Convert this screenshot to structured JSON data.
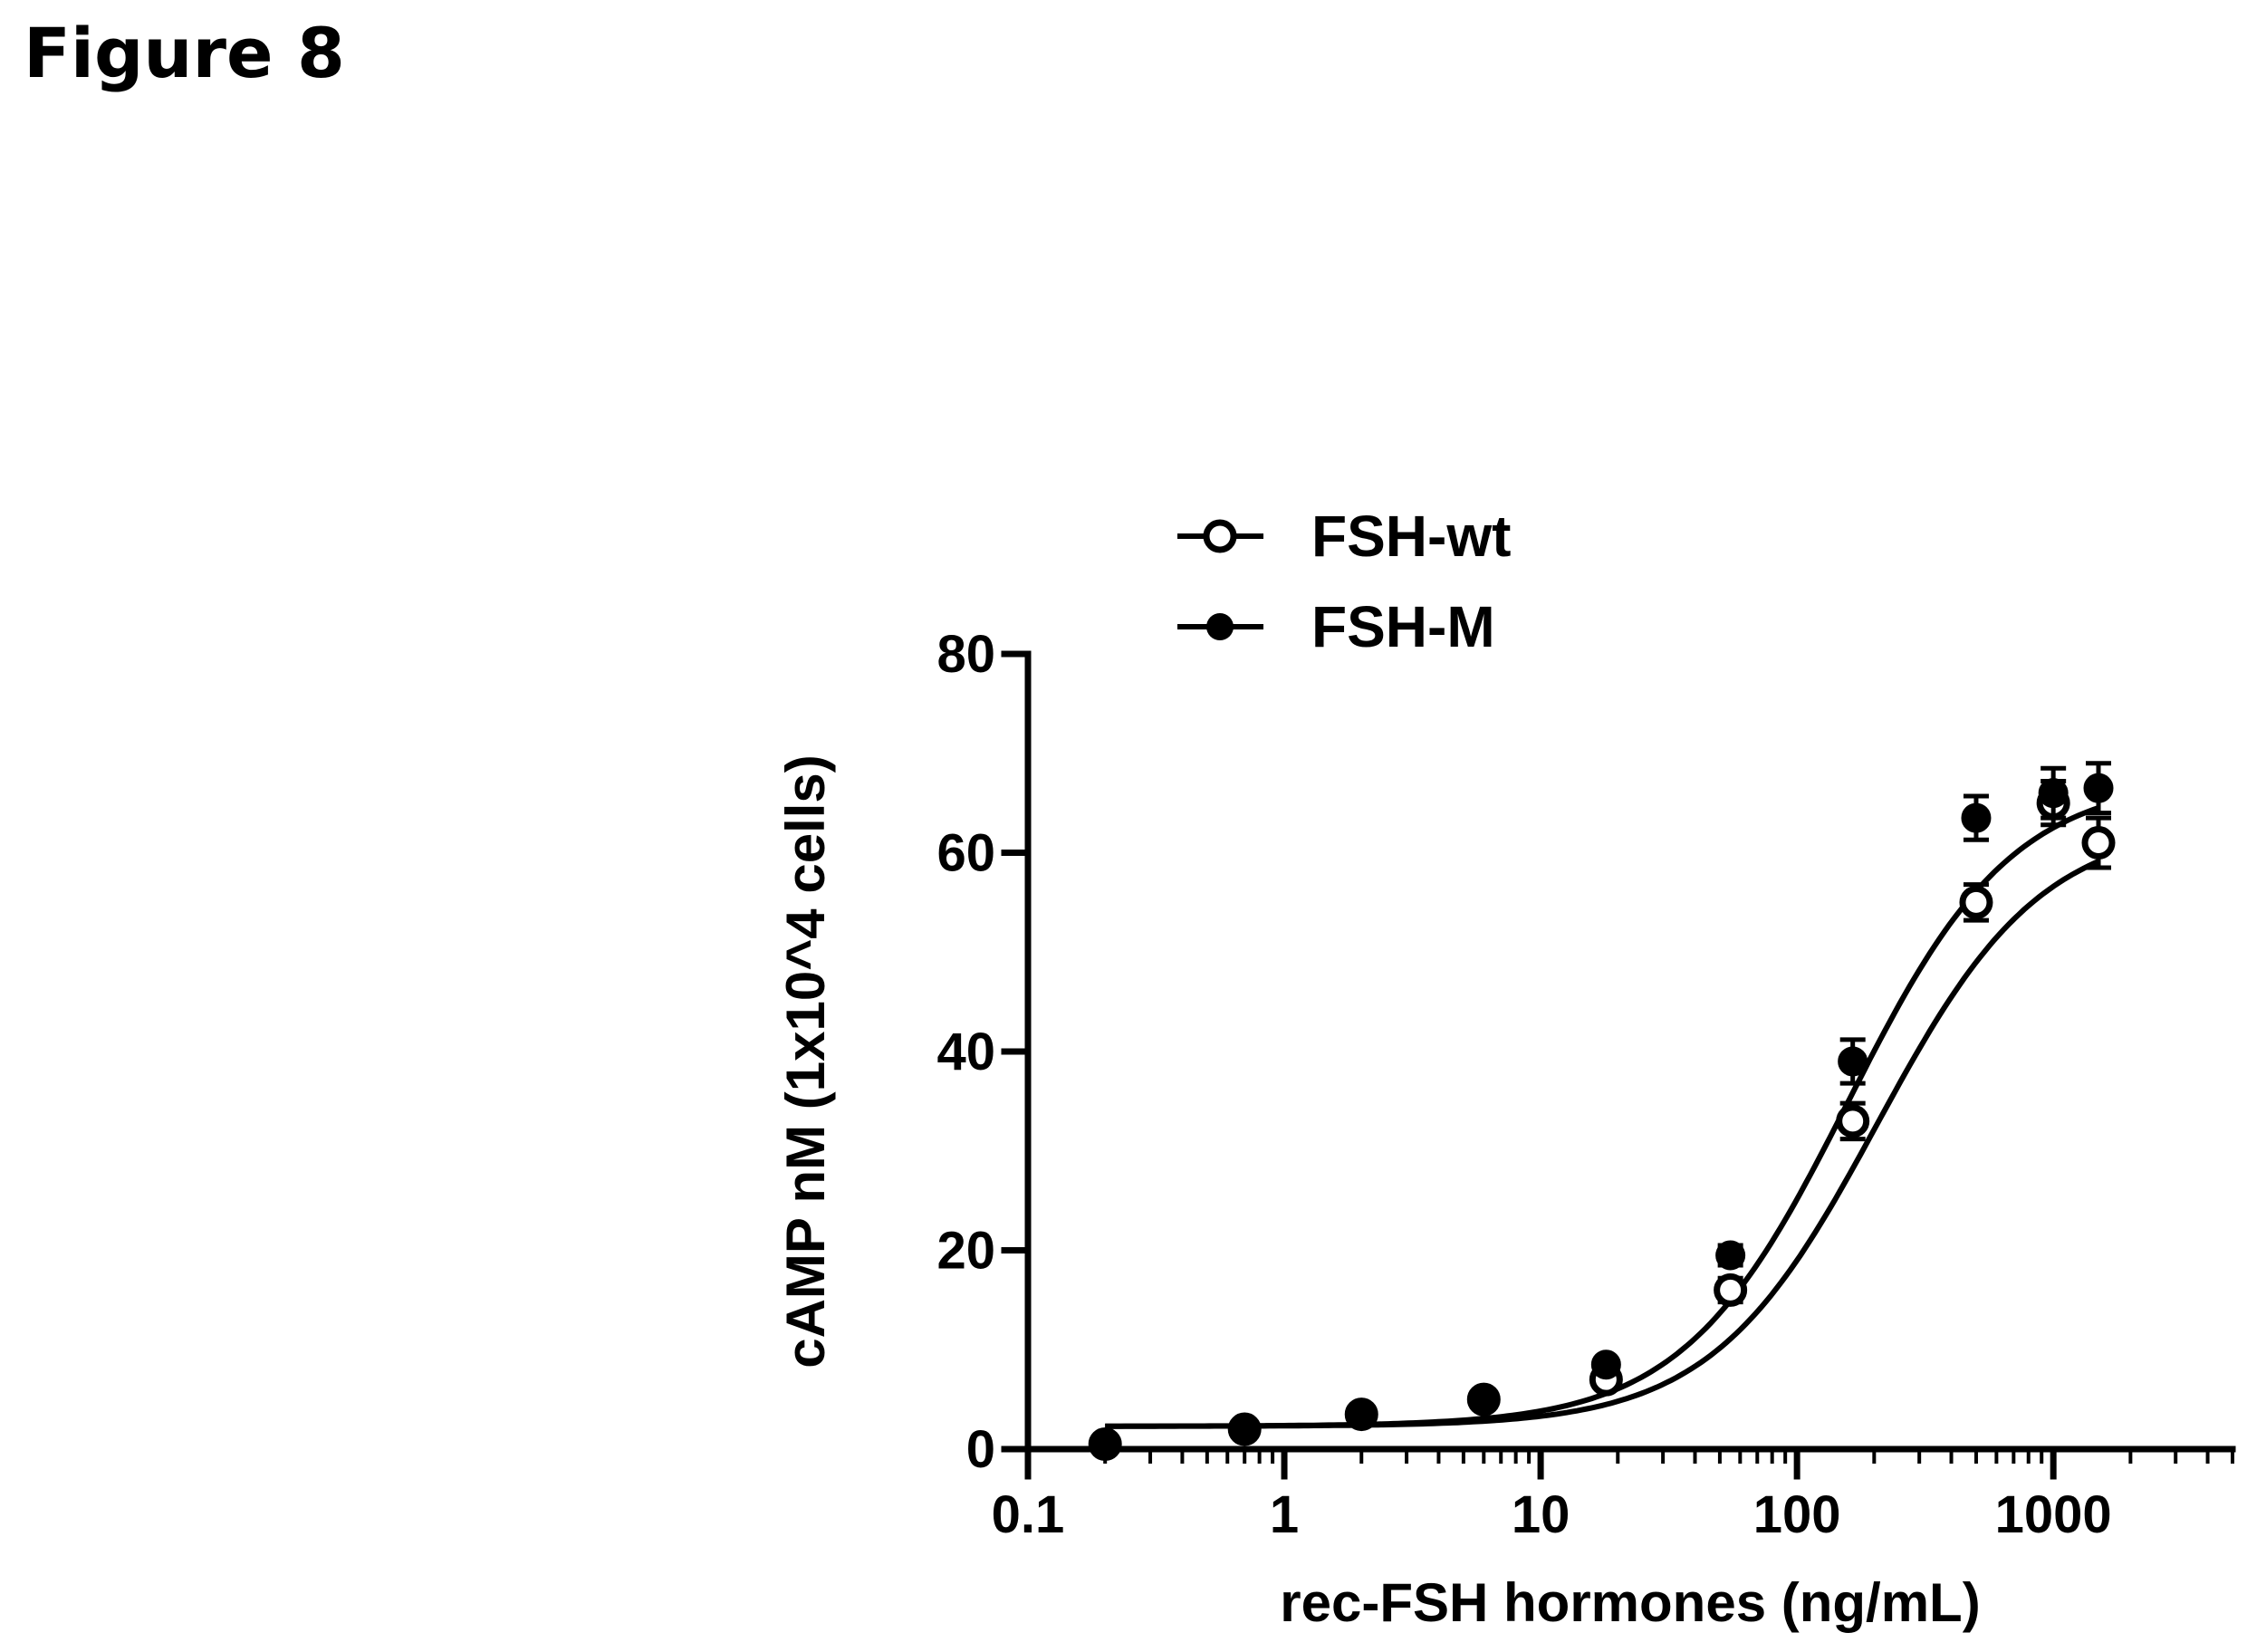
{
  "figure": {
    "title": "Figure 8"
  },
  "chart_data": {
    "type": "scatter",
    "xlabel": "rec-FSH hormones (ng/mL)",
    "ylabel": "cAMP nM (1x10^4 cells)",
    "x_scale": "log",
    "xlim": [
      0.1,
      5000
    ],
    "ylim": [
      0,
      80
    ],
    "x_ticks": [
      0.1,
      1,
      10,
      100,
      1000
    ],
    "x_tick_labels": [
      "0.1",
      "1",
      "10",
      "100",
      "1000"
    ],
    "y_ticks": [
      0,
      20,
      40,
      60,
      80
    ],
    "y_tick_labels": [
      "0",
      "20",
      "40",
      "60",
      "80"
    ],
    "legend_position": "top-left",
    "series": [
      {
        "name": "FSH-wt",
        "marker": "open-circle",
        "x": [
          0.2,
          0.7,
          2,
          6,
          18,
          55,
          165,
          500,
          1000,
          1500
        ],
        "y": [
          0.5,
          2,
          3.5,
          5,
          7,
          16,
          33,
          55,
          65,
          61
        ],
        "error": [
          0,
          0,
          0,
          0,
          0,
          1.2,
          1.8,
          1.8,
          2.2,
          2.5
        ],
        "fit": {
          "bottom": 2.3,
          "top": 63,
          "ec50": 205,
          "hill": 1.35
        }
      },
      {
        "name": "FSH-M",
        "marker": "filled-circle",
        "x": [
          0.2,
          0.7,
          2,
          6,
          18,
          55,
          165,
          500,
          1000,
          1500
        ],
        "y": [
          0.5,
          2,
          3.5,
          5,
          8.5,
          19.5,
          39,
          63.5,
          66,
          66.5
        ],
        "error": [
          0,
          0,
          0,
          0,
          0,
          1.0,
          2.2,
          2.2,
          2.5,
          2.5
        ],
        "fit": {
          "bottom": 2.3,
          "top": 67.5,
          "ec50": 158,
          "hill": 1.35
        }
      }
    ]
  }
}
